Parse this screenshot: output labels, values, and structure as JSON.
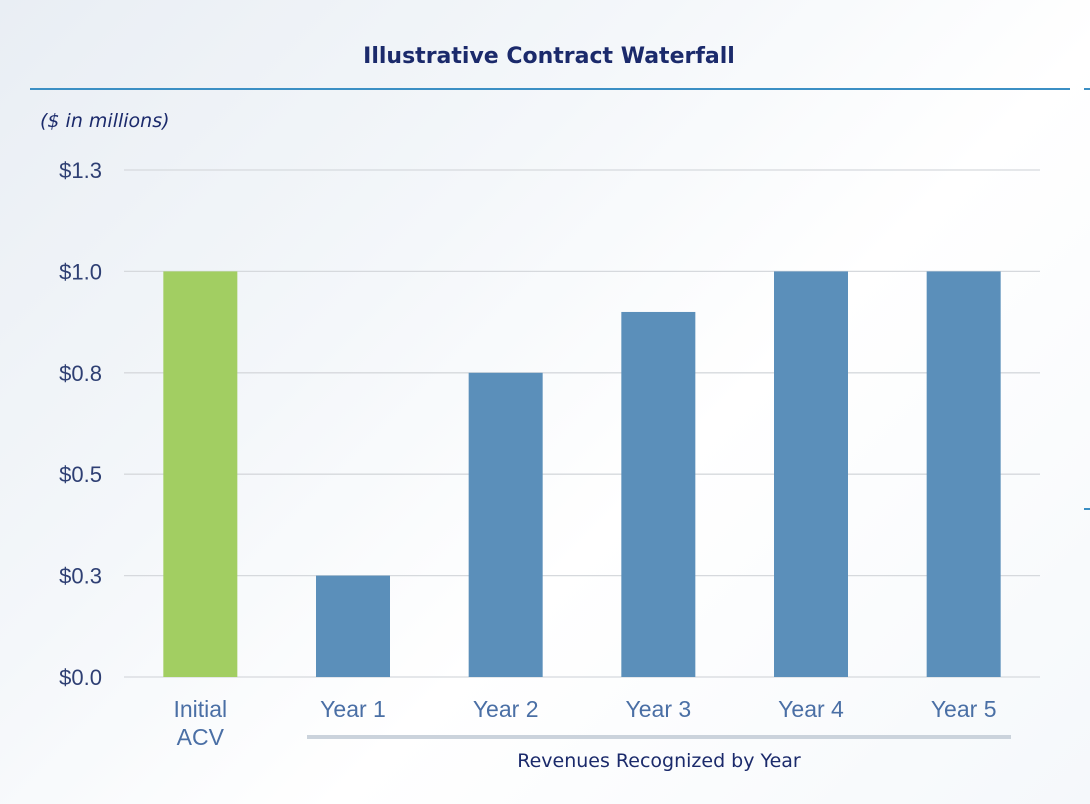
{
  "title": "Illustrative Contract Waterfall",
  "units_label": "($ in millions)",
  "group_label": "Revenues Recognized by Year",
  "colors": {
    "initial": "#a2ce62",
    "years": "#5b8fba",
    "title": "#1b2a6b",
    "rule": "#3b8fc4"
  },
  "chart_data": {
    "type": "bar",
    "categories": [
      "Initial ACV",
      "Year 1",
      "Year 2",
      "Year 3",
      "Year 4",
      "Year 5"
    ],
    "category_lines": [
      [
        "Initial",
        "ACV"
      ],
      [
        "Year 1"
      ],
      [
        "Year 2"
      ],
      [
        "Year 3"
      ],
      [
        "Year 4"
      ],
      [
        "Year 5"
      ]
    ],
    "values": [
      1.0,
      0.25,
      0.75,
      0.9,
      1.0,
      1.0
    ],
    "bar_colors": [
      "#a2ce62",
      "#5b8fba",
      "#5b8fba",
      "#5b8fba",
      "#5b8fba",
      "#5b8fba"
    ],
    "y_ticks": [
      0.0,
      0.25,
      0.5,
      0.75,
      1.0,
      1.25
    ],
    "y_tick_labels": [
      "$0.0",
      "$0.3",
      "$0.5",
      "$0.8",
      "$1.0",
      "$1.3"
    ],
    "ylim": [
      0,
      1.25
    ],
    "grid": true,
    "legend": false,
    "title": "Illustrative Contract Waterfall",
    "xlabel": "Revenues Recognized by Year",
    "ylabel": "($ in millions)"
  }
}
